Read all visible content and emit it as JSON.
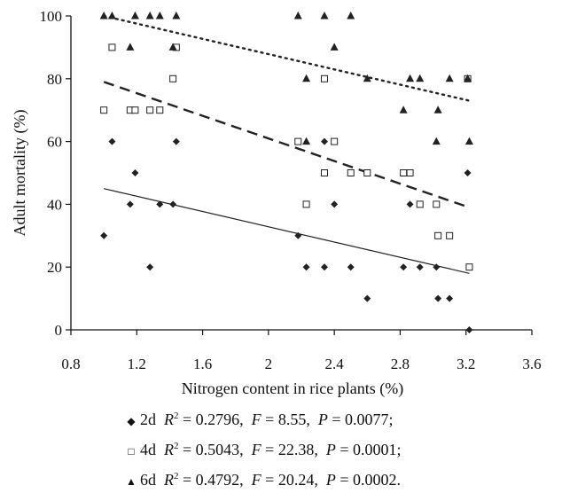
{
  "chart_data": {
    "type": "scatter",
    "xlabel": "Nitrogen content in rice plants (%)",
    "ylabel": "Adult mortality (%)",
    "xlim": [
      0.8,
      3.6
    ],
    "ylim": [
      0,
      100
    ],
    "x_ticks": [
      "0.8",
      "1.2",
      "1.6",
      "2",
      "2.4",
      "2.8",
      "3.2",
      "3.6"
    ],
    "y_ticks": [
      "0",
      "20",
      "40",
      "60",
      "80",
      "100"
    ],
    "grid": false,
    "legend_position": "bottom",
    "series": [
      {
        "name": "2d",
        "marker": "diamond",
        "color": "#222222",
        "trendline": {
          "style": "solid",
          "from": [
            1.0,
            45
          ],
          "to": [
            3.22,
            18
          ]
        },
        "points": [
          [
            1.0,
            30
          ],
          [
            1.05,
            60
          ],
          [
            1.16,
            40
          ],
          [
            1.19,
            50
          ],
          [
            1.28,
            20
          ],
          [
            1.34,
            40
          ],
          [
            1.42,
            40
          ],
          [
            1.44,
            60
          ],
          [
            2.18,
            30
          ],
          [
            2.23,
            20
          ],
          [
            2.34,
            20
          ],
          [
            2.34,
            60
          ],
          [
            2.4,
            40
          ],
          [
            2.5,
            20
          ],
          [
            2.6,
            10
          ],
          [
            2.82,
            20
          ],
          [
            2.86,
            40
          ],
          [
            2.92,
            20
          ],
          [
            3.02,
            20
          ],
          [
            3.03,
            10
          ],
          [
            3.1,
            10
          ],
          [
            3.21,
            50
          ],
          [
            3.22,
            0
          ]
        ]
      },
      {
        "name": "4d",
        "marker": "square-open",
        "color": "#222222",
        "trendline": {
          "style": "dashed",
          "from": [
            1.0,
            79
          ],
          "to": [
            3.22,
            39
          ]
        },
        "points": [
          [
            1.0,
            70
          ],
          [
            1.05,
            90
          ],
          [
            1.16,
            70
          ],
          [
            1.19,
            70
          ],
          [
            1.28,
            70
          ],
          [
            1.34,
            70
          ],
          [
            1.42,
            80
          ],
          [
            1.44,
            90
          ],
          [
            2.18,
            60
          ],
          [
            2.23,
            40
          ],
          [
            2.34,
            80
          ],
          [
            2.34,
            50
          ],
          [
            2.4,
            60
          ],
          [
            2.5,
            50
          ],
          [
            2.6,
            50
          ],
          [
            2.82,
            50
          ],
          [
            2.86,
            50
          ],
          [
            2.92,
            40
          ],
          [
            3.02,
            40
          ],
          [
            3.03,
            30
          ],
          [
            3.1,
            30
          ],
          [
            3.21,
            80
          ],
          [
            3.22,
            20
          ]
        ]
      },
      {
        "name": "6d",
        "marker": "triangle",
        "color": "#222222",
        "trendline": {
          "style": "dotted",
          "from": [
            1.0,
            100
          ],
          "to": [
            3.22,
            73
          ]
        },
        "points": [
          [
            1.0,
            100
          ],
          [
            1.05,
            100
          ],
          [
            1.16,
            90
          ],
          [
            1.19,
            100
          ],
          [
            1.28,
            100
          ],
          [
            1.34,
            100
          ],
          [
            1.42,
            90
          ],
          [
            1.44,
            100
          ],
          [
            2.18,
            100
          ],
          [
            2.23,
            80
          ],
          [
            2.23,
            60
          ],
          [
            2.34,
            100
          ],
          [
            2.4,
            90
          ],
          [
            2.5,
            100
          ],
          [
            2.6,
            80
          ],
          [
            2.82,
            70
          ],
          [
            2.86,
            80
          ],
          [
            2.92,
            80
          ],
          [
            3.02,
            60
          ],
          [
            3.03,
            70
          ],
          [
            3.1,
            80
          ],
          [
            3.21,
            80
          ],
          [
            3.22,
            60
          ]
        ]
      }
    ],
    "legend": [
      {
        "series": "2d",
        "r2": "0.2796",
        "f": "8.55",
        "p": "0.0077",
        "end": ";"
      },
      {
        "series": "4d",
        "r2": "0.5043",
        "f": "22.38",
        "p": "0.0001",
        "end": ";"
      },
      {
        "series": "6d",
        "r2": "0.4792",
        "f": "20.24",
        "p": "0.0002",
        "end": "."
      }
    ]
  }
}
